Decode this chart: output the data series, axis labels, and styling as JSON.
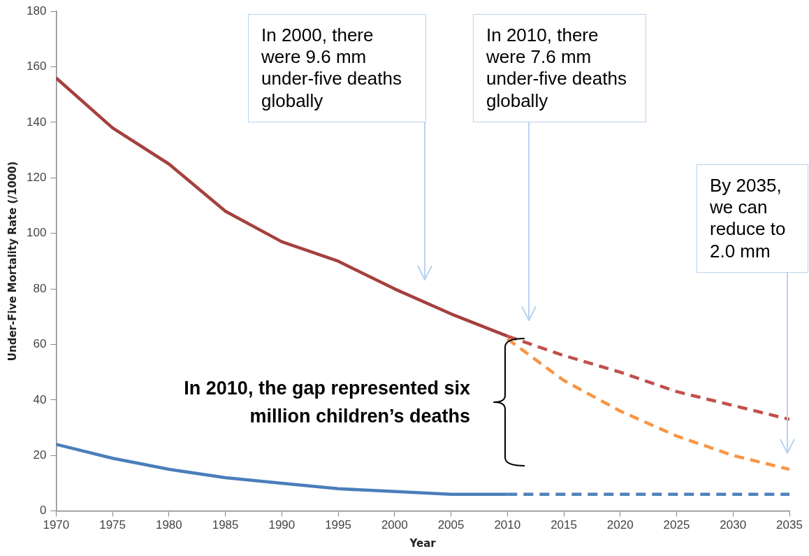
{
  "chart_data": {
    "type": "line",
    "xlabel": "Year",
    "ylabel": "Under-Five Mortality Rate (/1000)",
    "xlim": [
      1970,
      2035
    ],
    "xticks": [
      1970,
      1975,
      1980,
      1985,
      1990,
      1995,
      2000,
      2005,
      2010,
      2015,
      2020,
      2025,
      2030,
      2035
    ],
    "ylim": [
      0,
      180
    ],
    "yticks": [
      0,
      20,
      40,
      60,
      80,
      100,
      120,
      140,
      160,
      180
    ],
    "grid": false,
    "legend": false,
    "marker": "none",
    "series": [
      {
        "color": "#a5403e",
        "line_style": "solid",
        "x": [
          1970,
          1975,
          1980,
          1985,
          1990,
          1995,
          2000,
          2005,
          2010
        ],
        "values": [
          156,
          138,
          125,
          108,
          97,
          90,
          80,
          71,
          63
        ]
      },
      {
        "color": "#c0504d",
        "line_style": "dashed",
        "x": [
          2010,
          2015,
          2020,
          2025,
          2030,
          2035
        ],
        "values": [
          63,
          56,
          50,
          43,
          38,
          33
        ]
      },
      {
        "color": "#f79646",
        "line_style": "dashed",
        "x": [
          2010,
          2015,
          2020,
          2025,
          2030,
          2035
        ],
        "values": [
          62,
          47,
          36,
          27,
          20,
          15
        ]
      },
      {
        "color": "#4a7ebb",
        "line_style": "solid",
        "x": [
          1970,
          1975,
          1980,
          1985,
          1990,
          1995,
          2000,
          2005,
          2010
        ],
        "values": [
          24,
          19,
          15,
          12,
          10,
          8,
          7,
          6,
          6
        ]
      },
      {
        "color": "#4f81bd",
        "line_style": "dashed",
        "x": [
          2010,
          2015,
          2020,
          2025,
          2030,
          2035
        ],
        "values": [
          6,
          6,
          6,
          6,
          6,
          6
        ]
      }
    ],
    "annotations": [
      "In 2000, there were 9.6 mm under-five deaths globally",
      "In 2010, there were 7.6 mm under-five deaths globally",
      "By 2035, we can reduce to 2.0 mm",
      "In 2010, the gap represented six million children’s deaths"
    ]
  }
}
